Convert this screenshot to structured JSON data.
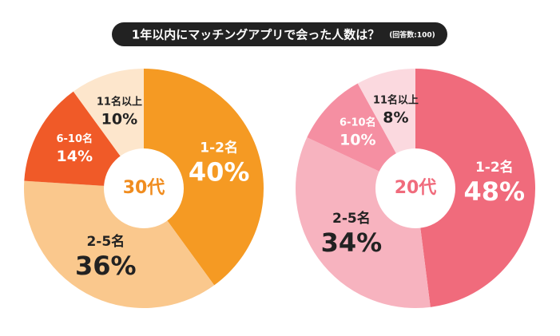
{
  "header": {
    "title": "1年以内にマッチングアプリで会った人数は？",
    "note": "(回答数:100)"
  },
  "chart_data": [
    {
      "type": "pie",
      "center_label": "30代",
      "center_color": "#f08c1e",
      "categories": [
        "1-2名",
        "2-5名",
        "6-10名",
        "11名以上"
      ],
      "values": [
        40,
        36,
        14,
        10
      ],
      "value_labels": [
        "40%",
        "36%",
        "14%",
        "10%"
      ],
      "colors": [
        "#f59a23",
        "#fac88d",
        "#f05a28",
        "#fde6cc"
      ],
      "label_colors": [
        "#ffffff",
        "#222222",
        "#ffffff",
        "#222222"
      ]
    },
    {
      "type": "pie",
      "center_label": "20代",
      "center_color": "#f06b7c",
      "categories": [
        "1-2名",
        "2-5名",
        "6-10名",
        "11名以上"
      ],
      "values": [
        48,
        34,
        10,
        8
      ],
      "value_labels": [
        "48%",
        "34%",
        "10%",
        "8%"
      ],
      "colors": [
        "#f06b7c",
        "#f7b3bf",
        "#f58fa2",
        "#fbd9df"
      ],
      "label_colors": [
        "#ffffff",
        "#222222",
        "#ffffff",
        "#222222"
      ]
    }
  ]
}
